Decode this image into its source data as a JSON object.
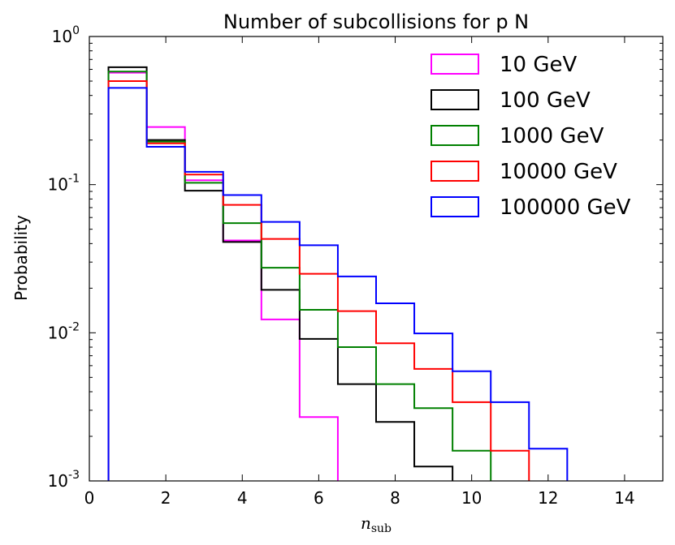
{
  "chart_data": {
    "type": "step-histogram",
    "title": "Number of subcollisions for p N",
    "xlabel_main": "n",
    "xlabel_sub": "sub",
    "ylabel": "Probability",
    "xlim": [
      0,
      15
    ],
    "ylim": [
      0.001,
      1
    ],
    "yscale": "log",
    "x_ticks": [
      0,
      2,
      4,
      6,
      8,
      10,
      12,
      14
    ],
    "x_tick_labels": [
      "0",
      "2",
      "4",
      "6",
      "8",
      "10",
      "12",
      "14"
    ],
    "y_ticks": [
      {
        "value": 1,
        "base": "10",
        "exp": "0"
      },
      {
        "value": 0.1,
        "base": "10",
        "exp": "-1"
      },
      {
        "value": 0.01,
        "base": "10",
        "exp": "-2"
      },
      {
        "value": 0.001,
        "base": "10",
        "exp": "-3"
      }
    ],
    "bin_edges_start": 0.5,
    "bin_width": 1,
    "legend_position": "top-right",
    "series": [
      {
        "name": "10 GeV",
        "color": "#ff00ff",
        "values": [
          0.57,
          0.245,
          0.107,
          0.042,
          0.0123,
          0.0027
        ]
      },
      {
        "name": "100 GeV",
        "color": "#000000",
        "values": [
          0.62,
          0.2,
          0.091,
          0.041,
          0.0195,
          0.0091,
          0.0045,
          0.0025,
          0.00125
        ]
      },
      {
        "name": "1000 GeV",
        "color": "#008000",
        "values": [
          0.58,
          0.195,
          0.103,
          0.055,
          0.0275,
          0.0143,
          0.008,
          0.0045,
          0.0031,
          0.0016
        ]
      },
      {
        "name": "10000 GeV",
        "color": "#ff0000",
        "values": [
          0.5,
          0.19,
          0.117,
          0.073,
          0.043,
          0.025,
          0.014,
          0.0085,
          0.0057,
          0.0034,
          0.0016
        ]
      },
      {
        "name": "100000 GeV",
        "color": "#0000ff",
        "values": [
          0.45,
          0.18,
          0.122,
          0.085,
          0.056,
          0.039,
          0.024,
          0.0158,
          0.0099,
          0.0055,
          0.0034,
          0.00165
        ]
      }
    ]
  }
}
